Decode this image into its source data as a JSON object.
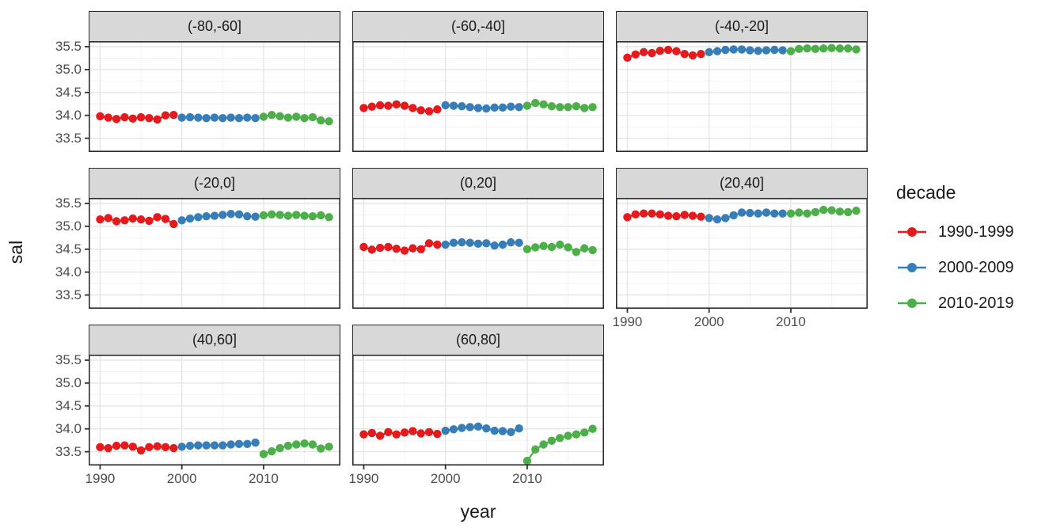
{
  "axes": {
    "x_label": "year",
    "y_label": "sal",
    "x_ticks": [
      "1990",
      "2000",
      "2010"
    ],
    "y_ticks": [
      "35.5",
      "35.0",
      "34.5",
      "34.0",
      "33.5"
    ],
    "x_minor": [
      1995,
      2005,
      2015
    ],
    "x_domain": [
      1988.6,
      2019.4
    ],
    "y_domain": [
      33.2,
      35.62
    ],
    "grid": "on"
  },
  "legend": {
    "title": "decade",
    "position": "right",
    "entries": [
      {
        "label": "1990-1999",
        "color": "#E41A1C"
      },
      {
        "label": "2000-2009",
        "color": "#377EB8"
      },
      {
        "label": "2010-2019",
        "color": "#4DAF4A"
      }
    ]
  },
  "theme": {
    "strip_fill": "#D8D8D8",
    "panel_border": "#2b2b2b",
    "grid_major": "#E4E4E4",
    "grid_minor": "#F1F1F1",
    "tick_color": "#333333",
    "tick_label_color": "#4d4d4d",
    "text_color": "#1a1a1a",
    "background": "#ffffff"
  },
  "chart_data": {
    "type": "line",
    "mark": "line+point",
    "x_field": "year",
    "y_field": "sal",
    "facet_field": "latitude band",
    "title": "",
    "xlabel": "year",
    "ylabel": "sal",
    "xlim": [
      1988.6,
      2019.4
    ],
    "ylim": [
      33.2,
      35.62
    ],
    "decades": [
      {
        "name": "1990-1999",
        "color": "#E41A1C",
        "years": [
          1990,
          1991,
          1992,
          1993,
          1994,
          1995,
          1996,
          1997,
          1998,
          1999
        ]
      },
      {
        "name": "2000-2009",
        "color": "#377EB8",
        "years": [
          2000,
          2001,
          2002,
          2003,
          2004,
          2005,
          2006,
          2007,
          2008,
          2009
        ]
      },
      {
        "name": "2010-2019",
        "color": "#4DAF4A",
        "years": [
          2010,
          2011,
          2012,
          2013,
          2014,
          2015,
          2016,
          2017,
          2018
        ]
      }
    ],
    "facets": [
      {
        "label": "(-80,-60]",
        "values": [
          [
            33.98,
            33.95,
            33.92,
            33.96,
            33.93,
            33.96,
            33.94,
            33.91,
            34.0,
            34.01
          ],
          [
            33.95,
            33.96,
            33.95,
            33.94,
            33.95,
            33.94,
            33.95,
            33.94,
            33.95,
            33.94
          ],
          [
            33.97,
            34.01,
            33.98,
            33.95,
            33.97,
            33.94,
            33.96,
            33.89,
            33.87
          ]
        ]
      },
      {
        "label": "(-60,-40]",
        "values": [
          [
            34.16,
            34.19,
            34.22,
            34.21,
            34.24,
            34.21,
            34.16,
            34.11,
            34.09,
            34.13
          ],
          [
            34.22,
            34.21,
            34.2,
            34.18,
            34.16,
            34.15,
            34.17,
            34.17,
            34.19,
            34.18
          ],
          [
            34.21,
            34.27,
            34.24,
            34.2,
            34.18,
            34.18,
            34.2,
            34.16,
            34.18
          ]
        ]
      },
      {
        "label": "(-40,-20]",
        "values": [
          [
            35.26,
            35.33,
            35.38,
            35.36,
            35.41,
            35.43,
            35.4,
            35.34,
            35.31,
            35.34
          ],
          [
            35.38,
            35.4,
            35.43,
            35.44,
            35.44,
            35.42,
            35.41,
            35.42,
            35.43,
            35.42
          ],
          [
            35.4,
            35.45,
            35.46,
            35.45,
            35.46,
            35.47,
            35.46,
            35.46,
            35.44
          ]
        ]
      },
      {
        "label": "(-20,0]",
        "values": [
          [
            35.15,
            35.18,
            35.11,
            35.13,
            35.17,
            35.15,
            35.12,
            35.2,
            35.16,
            35.05
          ],
          [
            35.13,
            35.17,
            35.2,
            35.22,
            35.23,
            35.25,
            35.27,
            35.26,
            35.22,
            35.21
          ],
          [
            35.24,
            35.26,
            35.25,
            35.23,
            35.25,
            35.23,
            35.22,
            35.24,
            35.2
          ]
        ]
      },
      {
        "label": "(0,20]",
        "values": [
          [
            34.55,
            34.49,
            34.53,
            34.55,
            34.51,
            34.47,
            34.52,
            34.5,
            34.63,
            34.6
          ],
          [
            34.6,
            34.64,
            34.65,
            34.64,
            34.62,
            34.63,
            34.58,
            34.6,
            34.65,
            34.64
          ],
          [
            34.5,
            34.54,
            34.57,
            34.55,
            34.6,
            34.54,
            34.44,
            34.52,
            34.48
          ]
        ]
      },
      {
        "label": "(20,40]",
        "values": [
          [
            35.2,
            35.26,
            35.28,
            35.28,
            35.26,
            35.23,
            35.22,
            35.25,
            35.23,
            35.21
          ],
          [
            35.18,
            35.15,
            35.18,
            35.24,
            35.3,
            35.29,
            35.28,
            35.3,
            35.28,
            35.28
          ],
          [
            35.28,
            35.3,
            35.28,
            35.31,
            35.36,
            35.35,
            35.32,
            35.31,
            35.34
          ]
        ]
      },
      {
        "label": "(40,60]",
        "values": [
          [
            33.6,
            33.58,
            33.63,
            33.64,
            33.61,
            33.53,
            33.6,
            33.62,
            33.6,
            33.58
          ],
          [
            33.61,
            33.63,
            33.64,
            33.64,
            33.64,
            33.64,
            33.66,
            33.67,
            33.67,
            33.7
          ],
          [
            33.45,
            33.51,
            33.58,
            33.63,
            33.66,
            33.68,
            33.66,
            33.57,
            33.61
          ]
        ]
      },
      {
        "label": "(60,80]",
        "values": [
          [
            33.88,
            33.91,
            33.85,
            33.93,
            33.88,
            33.92,
            33.95,
            33.9,
            33.93,
            33.89
          ],
          [
            33.96,
            33.99,
            34.02,
            34.04,
            34.05,
            34.01,
            33.96,
            33.95,
            33.93,
            34.01
          ],
          [
            33.3,
            33.55,
            33.66,
            33.74,
            33.8,
            33.85,
            33.88,
            33.92,
            34.0
          ]
        ]
      }
    ]
  }
}
